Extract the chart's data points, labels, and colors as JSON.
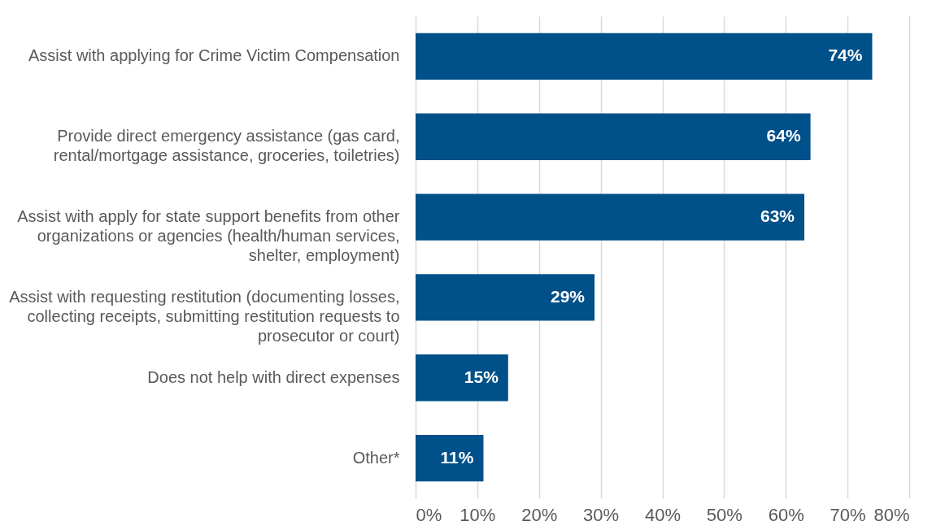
{
  "chart_data": {
    "type": "bar",
    "orientation": "horizontal",
    "categories": [
      "Assist with applying for Crime Victim Compensation",
      "Provide direct emergency assistance (gas card, rental/mortgage assistance, groceries, toiletries)",
      "Assist with apply for state support benefits from other organizations or agencies (health/human services, shelter, employment)",
      "Assist with requesting restitution (documenting losses, collecting receipts, submitting restitution requests to prosecutor or court)",
      "Does not help with direct expenses",
      "Other*"
    ],
    "values": [
      74,
      64,
      63,
      29,
      15,
      11
    ],
    "value_labels": [
      "74%",
      "64%",
      "63%",
      "29%",
      "15%",
      "11%"
    ],
    "color": "#00508a",
    "xlim": [
      0,
      80
    ],
    "xticks": [
      {
        "value": 0,
        "label": "0%"
      },
      {
        "value": 10,
        "label": "10%"
      },
      {
        "value": 20,
        "label": "20%"
      },
      {
        "value": 30,
        "label": "30%"
      },
      {
        "value": 40,
        "label": "40%"
      },
      {
        "value": 50,
        "label": "50%"
      },
      {
        "value": 60,
        "label": "60%"
      },
      {
        "value": 70,
        "label": "70%"
      },
      {
        "value": 80,
        "label": "80%"
      }
    ],
    "grid": "x"
  }
}
